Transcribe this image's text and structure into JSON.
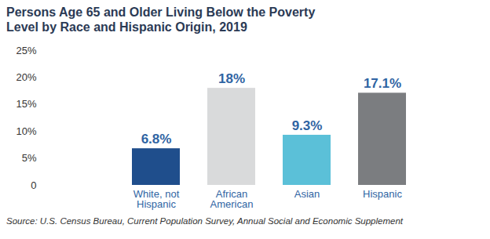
{
  "chart_data": {
    "type": "bar",
    "title": "Persons Age 65 and Older Living Below the Poverty Level by Race and Hispanic Origin, 2019",
    "source": "Source: U.S. Census Bureau, Current Population Survey, Annual Social and Economic Supplement",
    "categories": [
      "White, not Hispanic",
      "African American",
      "Asian",
      "Hispanic"
    ],
    "values": [
      6.8,
      18,
      9.3,
      17.1
    ],
    "value_labels": [
      "6.8%",
      "18%",
      "9.3%",
      "17.1%"
    ],
    "colors": [
      "#1f4e8c",
      "#d9dadb",
      "#5bc0d8",
      "#7b7d80"
    ],
    "ylim": [
      0,
      25
    ],
    "yticks": [
      0,
      {
        "value": 5,
        "label": "5%"
      },
      {
        "value": 10,
        "label": "10%"
      },
      {
        "value": 15,
        "label": "15%"
      },
      {
        "value": 20,
        "label": "20%"
      },
      {
        "value": 25,
        "label": "25%"
      }
    ],
    "grid": false,
    "data_labels": true
  }
}
